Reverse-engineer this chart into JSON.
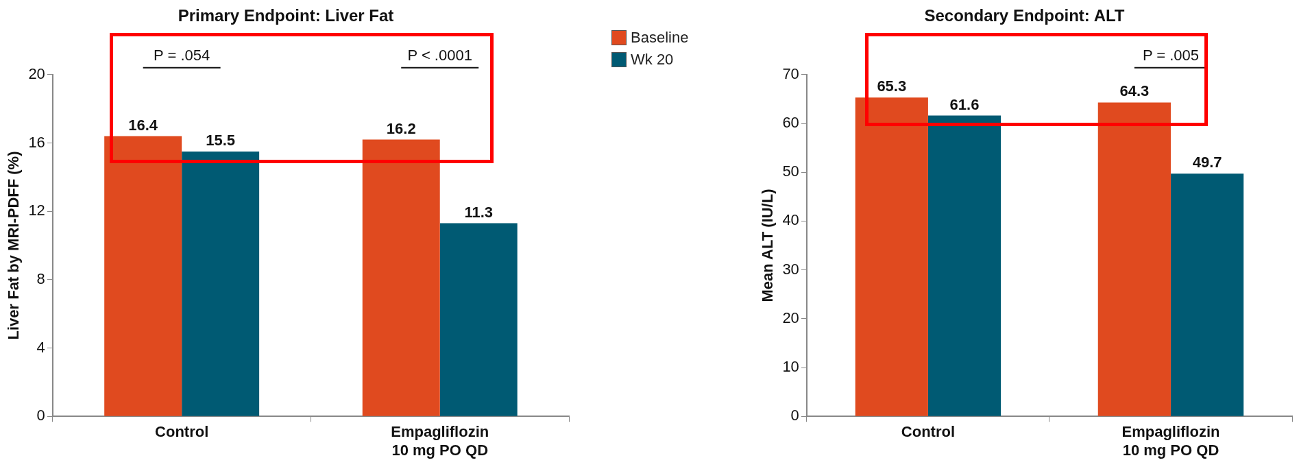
{
  "chart_data": [
    {
      "type": "bar",
      "title": "Primary Endpoint: Liver Fat",
      "ylabel": "Liver Fat by MRI-PDFF (%)",
      "categories": [
        "Control",
        "Empagliflozin 10 mg PO QD"
      ],
      "series": [
        {
          "name": "Baseline",
          "color": "#e04a1f",
          "values": [
            16.4,
            16.2
          ]
        },
        {
          "name": "Wk 20",
          "color": "#005a73",
          "values": [
            15.5,
            11.3
          ]
        }
      ],
      "ylim": [
        0,
        20
      ],
      "yticks": [
        0,
        4,
        8,
        12,
        16,
        20
      ],
      "grid": false,
      "legend": "right",
      "data_labels": true,
      "annotations": [
        "P = .054",
        "P < .0001"
      ]
    },
    {
      "type": "bar",
      "title": "Secondary Endpoint: ALT",
      "ylabel": "Mean ALT (IU/L)",
      "categories": [
        "Control",
        "Empagliflozin 10 mg PO QD"
      ],
      "series": [
        {
          "color": "#e04a1f",
          "values": [
            65.3,
            64.3
          ]
        },
        {
          "color": "#005a73",
          "values": [
            61.6,
            49.7
          ]
        }
      ],
      "ylim": [
        0,
        70
      ],
      "yticks": [
        0,
        10,
        20,
        30,
        40,
        50,
        60,
        70
      ],
      "grid": false,
      "data_labels": true,
      "annotations": [
        "P = .005"
      ]
    }
  ]
}
